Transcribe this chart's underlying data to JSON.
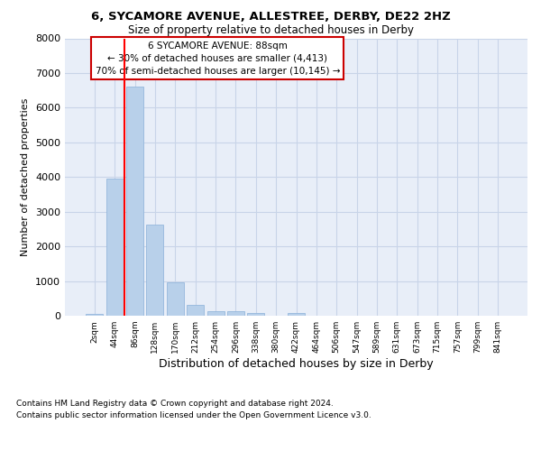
{
  "title_line1": "6, SYCAMORE AVENUE, ALLESTREE, DERBY, DE22 2HZ",
  "title_line2": "Size of property relative to detached houses in Derby",
  "xlabel": "Distribution of detached houses by size in Derby",
  "ylabel": "Number of detached properties",
  "bin_labels": [
    "2sqm",
    "44sqm",
    "86sqm",
    "128sqm",
    "170sqm",
    "212sqm",
    "254sqm",
    "296sqm",
    "338sqm",
    "380sqm",
    "422sqm",
    "464sqm",
    "506sqm",
    "547sqm",
    "589sqm",
    "631sqm",
    "673sqm",
    "715sqm",
    "757sqm",
    "799sqm",
    "841sqm"
  ],
  "bar_heights": [
    60,
    3950,
    6600,
    2620,
    950,
    315,
    130,
    130,
    90,
    0,
    80,
    0,
    0,
    0,
    0,
    0,
    0,
    0,
    0,
    0,
    0
  ],
  "bar_color": "#b8d0ea",
  "bar_edge_color": "#8ab0d8",
  "grid_color": "#c8d4e8",
  "background_color": "#e8eef8",
  "red_line_bin_index": 2,
  "annotation_title": "6 SYCAMORE AVENUE: 88sqm",
  "annotation_line2": "← 30% of detached houses are smaller (4,413)",
  "annotation_line3": "70% of semi-detached houses are larger (10,145) →",
  "annotation_box_color": "#ffffff",
  "annotation_box_edge": "#cc0000",
  "footnote_line1": "Contains HM Land Registry data © Crown copyright and database right 2024.",
  "footnote_line2": "Contains public sector information licensed under the Open Government Licence v3.0.",
  "ylim": [
    0,
    8000
  ],
  "yticks": [
    0,
    1000,
    2000,
    3000,
    4000,
    5000,
    6000,
    7000,
    8000
  ]
}
